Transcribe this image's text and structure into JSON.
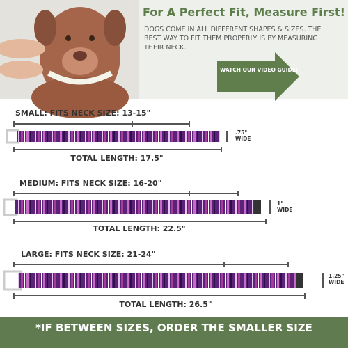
{
  "header": {
    "title": "For A Perfect Fit, Measure First!",
    "body": "DOGS COME IN ALL DIFFERENT SHAPES & SIZES. THE BEST WAY TO FIT THEM PROPERLY IS BY MEASURING THEIR NECK.",
    "button": "WATCH OUR VIDEO GUIDE!"
  },
  "sizes": [
    {
      "label": "SMALL:  FITS NECK SIZE: 13-15\"",
      "width": ".75\"",
      "width_unit": "WIDE",
      "total": "TOTAL LENGTH: 17.5\""
    },
    {
      "label": "MEDIUM:  FITS NECK SIZE: 16-20\"",
      "width": "1\"",
      "width_unit": "WIDE",
      "total": "TOTAL LENGTH: 22.5\""
    },
    {
      "label": "LARGE:  FITS NECK SIZE: 21-24\"",
      "width": "1.25\"",
      "width_unit": "WIDE",
      "total": "TOTAL LENGTH: 26.5\""
    }
  ],
  "footer": "*IF BETWEEN SIZES, ORDER THE SMALLER SIZE"
}
